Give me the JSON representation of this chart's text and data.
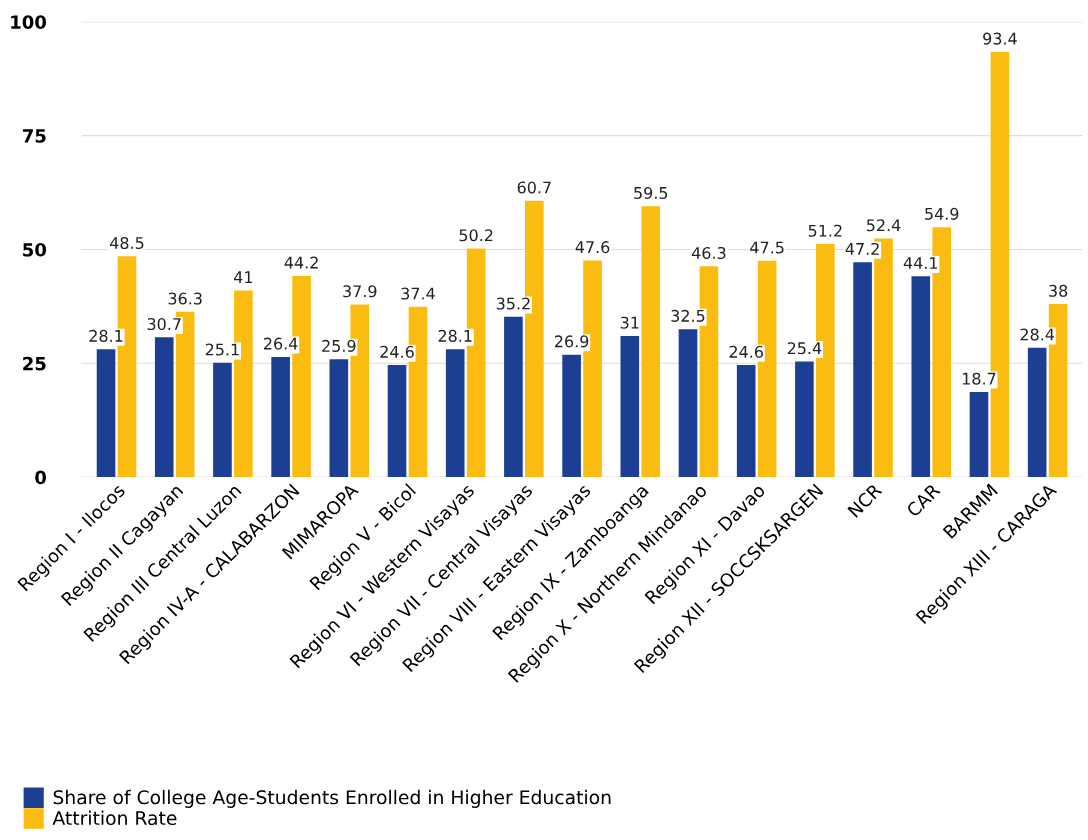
{
  "chart_data": {
    "type": "bar",
    "categories": [
      "Region I - Ilocos",
      "Region II Cagayan",
      "Region III Central Luzon",
      "Region IV-A - CALABARZON",
      "MIMAROPA",
      "Region V - Bicol",
      "Region VI - Western Visayas",
      "Region VII - Central Visayas",
      "Region VIII - Eastern Visayas",
      "Region IX - Zamboanga",
      "Region X - Northern Mindanao",
      "Region XI - Davao",
      "Region XII - SOCCSKSARGEN",
      "NCR",
      "CAR",
      "BARMM",
      "Region XIII - CARAGA"
    ],
    "series": [
      {
        "name": "Share of College Age-Students Enrolled in Higher Education",
        "color": "#1c3f94",
        "values": [
          28.1,
          30.7,
          25.1,
          26.4,
          25.9,
          24.6,
          28.1,
          35.2,
          26.9,
          31,
          32.5,
          24.6,
          25.4,
          47.2,
          44.1,
          18.7,
          28.4
        ]
      },
      {
        "name": "Attrition Rate",
        "color": "#fbbc11",
        "values": [
          48.5,
          36.3,
          41,
          44.2,
          37.9,
          37.4,
          50.2,
          60.7,
          47.6,
          59.5,
          46.3,
          47.5,
          51.2,
          52.4,
          54.9,
          93.4,
          38
        ]
      }
    ],
    "ylim": [
      0,
      100
    ],
    "yticks": [
      0,
      25,
      50,
      75,
      100
    ],
    "grid": "y",
    "legend": "bottom left",
    "data_labels": true
  }
}
